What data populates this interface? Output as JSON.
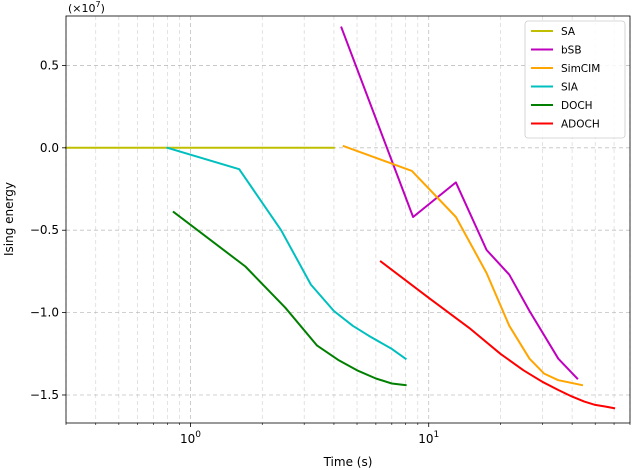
{
  "chart_data": {
    "type": "line",
    "xlabel": "Time (s)",
    "ylabel": "Ising energy",
    "y_offset_text": "(×10",
    "y_offset_exp": "7",
    "y_offset_close": ")",
    "xscale": "log",
    "xlim": [
      0.3,
      70
    ],
    "ylim": [
      -1.67,
      0.8
    ],
    "y_scale_factor": 10000000,
    "grid": true,
    "legend_position": "top-right",
    "x_ticks": [
      {
        "value": 1,
        "base": "10",
        "exp": "0"
      },
      {
        "value": 10,
        "base": "10",
        "exp": "1"
      }
    ],
    "y_ticks": [
      {
        "value": 0.5,
        "label": "0.5"
      },
      {
        "value": 0.0,
        "label": "0.0"
      },
      {
        "value": -0.5,
        "label": "−0.5"
      },
      {
        "value": -1.0,
        "label": "−1.0"
      },
      {
        "value": -1.5,
        "label": "−1.5"
      }
    ],
    "series": [
      {
        "name": "SA",
        "color": "#bfbf00",
        "x": [
          0.3,
          1.0,
          2.0,
          3.0,
          4.0
        ],
        "y": [
          0.0,
          0.0,
          0.0,
          0.0,
          0.0
        ]
      },
      {
        "name": "bSB",
        "color": "#bf00bf",
        "x": [
          4.3,
          8.6,
          13.0,
          17.5,
          21.8,
          26.5,
          35.0,
          42.0
        ],
        "y": [
          0.73,
          -0.42,
          -0.21,
          -0.62,
          -0.77,
          -0.99,
          -1.28,
          -1.4
        ]
      },
      {
        "name": "SimCIM",
        "color": "#ffa500",
        "x": [
          4.4,
          8.5,
          13.0,
          17.5,
          21.8,
          26.5,
          30.5,
          35.0,
          44.0
        ],
        "y": [
          0.01,
          -0.14,
          -0.42,
          -0.76,
          -1.08,
          -1.28,
          -1.37,
          -1.41,
          -1.44
        ]
      },
      {
        "name": "SIA",
        "color": "#00bfbf",
        "x": [
          0.8,
          1.6,
          2.4,
          3.2,
          4.0,
          4.8,
          5.6,
          7.0,
          8.0
        ],
        "y": [
          0.0,
          -0.13,
          -0.5,
          -0.83,
          -0.99,
          -1.08,
          -1.14,
          -1.22,
          -1.28
        ]
      },
      {
        "name": "DOCH",
        "color": "#007f00",
        "x": [
          0.85,
          1.7,
          2.5,
          3.4,
          4.2,
          5.0,
          6.0,
          7.0,
          8.0
        ],
        "y": [
          -0.39,
          -0.72,
          -0.97,
          -1.2,
          -1.29,
          -1.35,
          -1.4,
          -1.43,
          -1.44
        ]
      },
      {
        "name": "ADOCH",
        "color": "#ff0000",
        "x": [
          6.3,
          10.0,
          15.0,
          20.0,
          25.0,
          30.0,
          35.0,
          40.0,
          45.0,
          50.0,
          55.0,
          60.0
        ],
        "y": [
          -0.69,
          -0.91,
          -1.1,
          -1.25,
          -1.35,
          -1.42,
          -1.47,
          -1.51,
          -1.54,
          -1.56,
          -1.57,
          -1.58
        ]
      }
    ]
  }
}
